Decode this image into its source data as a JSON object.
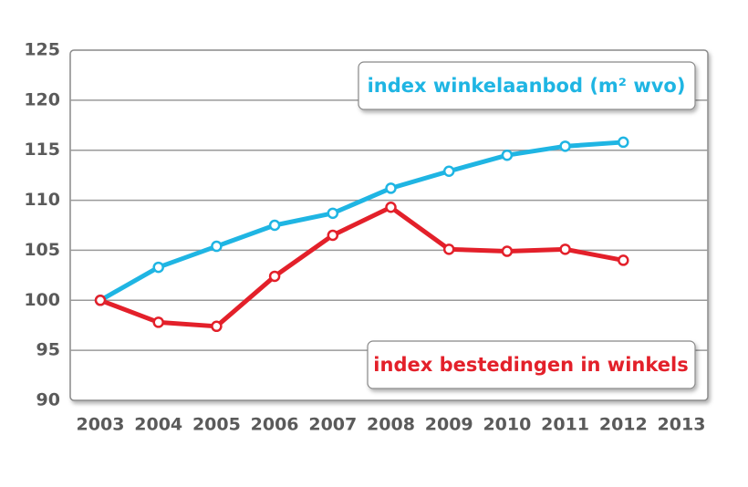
{
  "chart_data": {
    "type": "line",
    "categories": [
      "2003",
      "2004",
      "2005",
      "2006",
      "2007",
      "2008",
      "2009",
      "2010",
      "2011",
      "2012",
      "2013"
    ],
    "series": [
      {
        "name": "index winkelaanbod (m² wvo)",
        "color": "#1fb5e3",
        "values": [
          100,
          103.3,
          105.4,
          107.5,
          108.7,
          111.2,
          112.9,
          114.5,
          115.4,
          115.8,
          null
        ]
      },
      {
        "name": "index bestedingen in winkels",
        "color": "#e3202a",
        "values": [
          100,
          97.8,
          97.4,
          102.4,
          106.5,
          109.3,
          105.1,
          104.9,
          105.1,
          104.0,
          null
        ]
      }
    ],
    "ylim": [
      90,
      125
    ],
    "yticks": [
      90,
      95,
      100,
      105,
      110,
      115,
      120,
      125
    ],
    "grid": true
  }
}
